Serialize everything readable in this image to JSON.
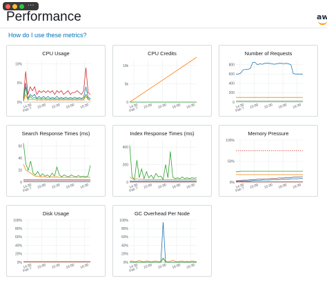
{
  "window": {
    "more_label": "...",
    "title": "Performance",
    "logo_text": "aws"
  },
  "help_link": "How do I use these metrics?",
  "colors": {
    "link": "#0073bb",
    "blue": "#1f77b4",
    "orange": "#ff7f0e",
    "green": "#2ca02c",
    "red": "#d62728",
    "purple": "#9467bd",
    "brown": "#8c564b"
  },
  "x_ticks": [
    "14:30\nFeb 7",
    "15:00",
    "15:30",
    "16:00",
    "16:30"
  ],
  "charts": [
    {
      "title": "CPU Usage",
      "type": "line",
      "y_ticks": [
        "0%",
        "5%",
        "10%"
      ],
      "y_range": [
        0,
        11
      ],
      "series": [
        {
          "color": "#d62728",
          "values": [
            1,
            8,
            2,
            4,
            3,
            4,
            2,
            3,
            2.5,
            3,
            2.5,
            3,
            2.5,
            3,
            2,
            3,
            2.5,
            3,
            2,
            2.5,
            3,
            2,
            2.5,
            2.5,
            3,
            2.5,
            2,
            3,
            9,
            2.5,
            2
          ]
        },
        {
          "color": "#1f77b4",
          "values": [
            0.5,
            5,
            1,
            2,
            1.5,
            2,
            1,
            1.5,
            1,
            1.5,
            1,
            1.5,
            1,
            1.2,
            1,
            1.5,
            1,
            1.2,
            1,
            1.3,
            1,
            1.2,
            1,
            1.3,
            1,
            1.2,
            1,
            1.3,
            4,
            1.2,
            1
          ]
        },
        {
          "color": "#2ca02c",
          "values": [
            0.3,
            4,
            0.8,
            1.5,
            1,
            1.2,
            0.8,
            1,
            0.8,
            1,
            0.8,
            0.9,
            0.8,
            0.9,
            0.8,
            0.9,
            0.8,
            0.9,
            0.8,
            0.9,
            0.8,
            0.9,
            0.8,
            0.9,
            0.8,
            0.9,
            0.8,
            0.9,
            2,
            0.9,
            0.8
          ]
        },
        {
          "color": "#ff7f0e",
          "values": [
            0.2,
            2,
            0.5,
            0.8,
            0.6,
            0.7,
            0.5,
            0.6,
            0.5,
            0.6,
            0.5,
            0.6,
            0.5,
            0.6,
            0.5,
            0.6,
            0.5,
            0.6,
            0.5,
            0.6,
            0.5,
            0.6,
            0.5,
            0.6,
            0.5,
            0.6,
            0.5,
            0.6,
            1.5,
            0.6,
            0.5
          ]
        }
      ]
    },
    {
      "title": "CPU Credits",
      "type": "line",
      "y_ticks": [
        "0",
        "5k",
        "10k"
      ],
      "y_range": [
        0,
        11500
      ],
      "series": [
        {
          "color": "#ff7f0e",
          "values": [
            0,
            13000
          ]
        },
        {
          "color": "#2ca02c",
          "values": [
            0,
            0
          ]
        }
      ]
    },
    {
      "title": "Number of Requests",
      "type": "line",
      "y_ticks": [
        "0",
        "200",
        "400",
        "600",
        "800"
      ],
      "y_range": [
        0,
        900
      ],
      "series": [
        {
          "color": "#1f77b4",
          "values": [
            600,
            600,
            620,
            690,
            700,
            700,
            720,
            850,
            850,
            800,
            820,
            810,
            830,
            830,
            830,
            820,
            810,
            820,
            830,
            830,
            820,
            830,
            820,
            800,
            610,
            600,
            600,
            600,
            600
          ]
        },
        {
          "color": "#ff7f0e",
          "values": [
            100,
            100,
            100,
            100,
            100,
            100,
            100,
            100,
            100,
            100,
            100,
            100,
            100,
            100,
            100,
            100,
            100,
            100,
            100,
            100,
            100,
            100,
            100,
            100,
            100,
            100,
            100,
            100,
            100
          ]
        },
        {
          "color": "#2ca02c",
          "values": [
            20,
            20,
            20,
            20,
            20,
            20,
            20,
            20,
            20,
            20,
            20,
            20,
            20,
            20,
            20,
            20,
            20,
            20,
            20,
            20,
            20,
            20,
            20,
            20,
            20,
            20,
            20,
            20,
            20
          ]
        }
      ]
    },
    {
      "title": "Search Response Times (ms)",
      "type": "line",
      "y_ticks": [
        "0",
        "20",
        "40",
        "60"
      ],
      "y_range": [
        0,
        70
      ],
      "series": [
        {
          "color": "#2ca02c",
          "values": [
            65,
            30,
            20,
            35,
            15,
            12,
            18,
            10,
            14,
            10,
            12,
            9,
            15,
            10,
            25,
            12,
            9,
            12,
            10,
            9,
            12,
            10,
            9,
            11,
            9,
            10,
            9,
            10,
            28
          ]
        },
        {
          "color": "#ff7f0e",
          "values": [
            30,
            20,
            18,
            15,
            12,
            10,
            10,
            9,
            9,
            9,
            8,
            8,
            9,
            8,
            9,
            8,
            8,
            8,
            8,
            8,
            8,
            8,
            8,
            8,
            8,
            8,
            8,
            8,
            8
          ]
        },
        {
          "color": "#1f77b4",
          "values": [
            4,
            4,
            4,
            4,
            4,
            4,
            4,
            4,
            4,
            4,
            4,
            4,
            4,
            4,
            4,
            4,
            4,
            4,
            4,
            4,
            4,
            4,
            4,
            4,
            4,
            4,
            4,
            4,
            4
          ]
        },
        {
          "color": "#d62728",
          "values": [
            2,
            2,
            2,
            2,
            2,
            2,
            2,
            2,
            2,
            2,
            2,
            2,
            2,
            2,
            2,
            2,
            2,
            2,
            2,
            2,
            2,
            2,
            2,
            2,
            2,
            2,
            2,
            2,
            2
          ]
        }
      ]
    },
    {
      "title": "Index Response Times (ms)",
      "type": "line",
      "y_ticks": [
        "0",
        "200",
        "400"
      ],
      "y_range": [
        0,
        480
      ],
      "series": [
        {
          "color": "#2ca02c",
          "values": [
            420,
            60,
            30,
            250,
            50,
            150,
            40,
            120,
            50,
            80,
            40,
            100,
            60,
            70,
            30,
            200,
            50,
            350,
            60,
            40,
            50,
            40,
            60,
            40,
            50,
            40,
            50,
            45,
            50
          ]
        },
        {
          "color": "#ff7f0e",
          "values": [
            60,
            40,
            30,
            40,
            30,
            35,
            30,
            30,
            30,
            30,
            30,
            30,
            30,
            30,
            30,
            30,
            30,
            30,
            30,
            30,
            30,
            30,
            30,
            30,
            30,
            30,
            30,
            30,
            30
          ]
        },
        {
          "color": "#1f77b4",
          "values": [
            15,
            15,
            15,
            15,
            15,
            15,
            15,
            15,
            15,
            15,
            15,
            15,
            15,
            15,
            15,
            15,
            15,
            15,
            15,
            15,
            15,
            15,
            15,
            15,
            15,
            15,
            15,
            15,
            15
          ]
        },
        {
          "color": "#d62728",
          "values": [
            5,
            5,
            5,
            5,
            5,
            5,
            5,
            5,
            5,
            5,
            5,
            5,
            5,
            5,
            5,
            5,
            5,
            5,
            5,
            5,
            5,
            5,
            5,
            5,
            5,
            5,
            5,
            5,
            5
          ]
        }
      ]
    },
    {
      "title": "Memory Pressure",
      "type": "line",
      "y_ticks": [
        "0%",
        "50%",
        "100%"
      ],
      "y_range": [
        0,
        100
      ],
      "dashed": {
        "color": "#d62728",
        "value": 75
      },
      "series": [
        {
          "color": "#2ca02c",
          "values": [
            25,
            25,
            26,
            26,
            26,
            26,
            26,
            26,
            26,
            26,
            26,
            26,
            26,
            26,
            26,
            26,
            26,
            26,
            26,
            26,
            26,
            26,
            26,
            26,
            26,
            26,
            26,
            26,
            26
          ]
        },
        {
          "color": "#ff7f0e",
          "values": [
            18,
            18,
            18,
            18,
            18,
            18,
            18,
            18,
            18,
            18,
            18,
            18,
            18,
            18,
            18,
            18,
            18,
            18,
            18,
            18,
            18,
            18,
            18,
            18,
            18,
            18,
            18,
            18,
            18
          ]
        },
        {
          "color": "#8c564b",
          "values": [
            3,
            4,
            4,
            5,
            5,
            5,
            6,
            6,
            6,
            7,
            7,
            7,
            8,
            8,
            8,
            9,
            9,
            9,
            10,
            10,
            10,
            11,
            11,
            11,
            12,
            12,
            12,
            13,
            13
          ]
        },
        {
          "color": "#1f77b4",
          "values": [
            2,
            2,
            2,
            3,
            3,
            3,
            3,
            4,
            4,
            4,
            4,
            5,
            5,
            5,
            5,
            6,
            6,
            6,
            6,
            7,
            7,
            7,
            7,
            8,
            8,
            8,
            8,
            9,
            9
          ]
        },
        {
          "color": "#d62728",
          "values": [
            1,
            1,
            1,
            1,
            1,
            1,
            1,
            1,
            1,
            1,
            1,
            1,
            1,
            1,
            1,
            1,
            1,
            1,
            1,
            1,
            1,
            1,
            1,
            1,
            1,
            1,
            1,
            1,
            1
          ]
        }
      ]
    },
    {
      "title": "Disk Usage",
      "type": "line",
      "y_ticks": [
        "0%",
        "20%",
        "40%",
        "60%",
        "80%",
        "100%"
      ],
      "y_range": [
        0,
        100
      ],
      "series": [
        {
          "color": "#ff7f0e",
          "values": [
            1,
            1,
            1,
            1,
            1,
            1,
            1,
            1,
            1,
            1,
            1,
            1,
            1,
            1,
            1,
            1,
            1,
            1,
            1,
            1,
            1,
            1,
            1,
            1,
            1,
            1,
            1,
            1,
            1
          ]
        },
        {
          "color": "#d62728",
          "values": [
            1.5,
            1.5,
            1.5,
            1.5,
            1.5,
            1.5,
            1.5,
            1.5,
            1.5,
            1.5,
            1.5,
            1.5,
            1.5,
            1.5,
            1.5,
            1.5,
            1.5,
            1.5,
            1.5,
            1.5,
            1.5,
            1.5,
            1.5,
            1.5,
            1.5,
            1.5,
            1.5,
            1.5,
            1.5
          ]
        }
      ]
    },
    {
      "title": "GC Overhead Per Node",
      "type": "line",
      "y_ticks": [
        "0%",
        "20%",
        "40%",
        "60%",
        "80%",
        "100%"
      ],
      "y_range": [
        0,
        100
      ],
      "series": [
        {
          "color": "#1f77b4",
          "values": [
            0,
            0,
            0,
            0,
            0,
            0,
            0,
            0,
            0,
            0,
            0,
            0,
            0,
            0,
            95,
            0,
            0,
            0,
            0,
            0,
            0,
            0,
            0,
            0,
            0,
            0,
            0,
            0,
            0
          ]
        },
        {
          "color": "#ff7f0e",
          "values": [
            2,
            3,
            1,
            2,
            4,
            2,
            1,
            3,
            2,
            1,
            2,
            3,
            1,
            2,
            8,
            3,
            1,
            2,
            5,
            2,
            1,
            2,
            3,
            1,
            2,
            1,
            3,
            2,
            1
          ]
        },
        {
          "color": "#2ca02c",
          "values": [
            0,
            0,
            0,
            0,
            0,
            0,
            0,
            0,
            0,
            0,
            0,
            0,
            0,
            0,
            10,
            0,
            0,
            0,
            0,
            0,
            0,
            0,
            0,
            0,
            0,
            0,
            0,
            0,
            0
          ]
        }
      ]
    }
  ]
}
